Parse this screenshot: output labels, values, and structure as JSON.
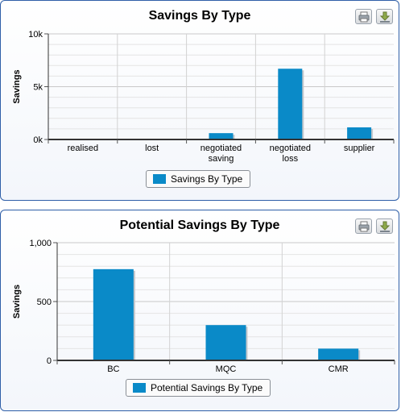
{
  "colors": {
    "bar": "#0a8ac8",
    "panel_border": "#2f5fa8"
  },
  "panels": [
    {
      "title": "Savings By Type",
      "legend_label": "Savings By Type",
      "print_icon": "print-icon",
      "export_icon": "download-icon"
    },
    {
      "title": "Potential Savings By Type",
      "legend_label": "Potential Savings By Type",
      "print_icon": "print-icon",
      "export_icon": "download-icon"
    }
  ],
  "chart_data": [
    {
      "type": "bar",
      "title": "Savings By Type",
      "categories": [
        [
          "realised"
        ],
        [
          "lost"
        ],
        [
          "negotiated",
          "saving"
        ],
        [
          "negotiated",
          "loss"
        ],
        [
          "supplier"
        ]
      ],
      "series": [
        {
          "name": "Savings By Type",
          "values": [
            0,
            0,
            600,
            6700,
            1150
          ]
        }
      ],
      "ylabel": "Savings",
      "ylim": [
        0,
        10000
      ],
      "yticks": [
        0,
        5000,
        10000
      ],
      "ytick_labels": [
        "0k",
        "5k",
        "10k"
      ],
      "grid": true,
      "legend": "bottom"
    },
    {
      "type": "bar",
      "title": "Potential Savings By Type",
      "categories": [
        [
          "BC"
        ],
        [
          "MQC"
        ],
        [
          "CMR"
        ]
      ],
      "series": [
        {
          "name": "Potential Savings By Type",
          "values": [
            775,
            300,
            100
          ]
        }
      ],
      "ylabel": "Savings",
      "ylim": [
        0,
        1000
      ],
      "yticks": [
        0,
        500,
        1000
      ],
      "ytick_labels": [
        "0",
        "500",
        "1,000"
      ],
      "grid": true,
      "legend": "bottom"
    }
  ]
}
